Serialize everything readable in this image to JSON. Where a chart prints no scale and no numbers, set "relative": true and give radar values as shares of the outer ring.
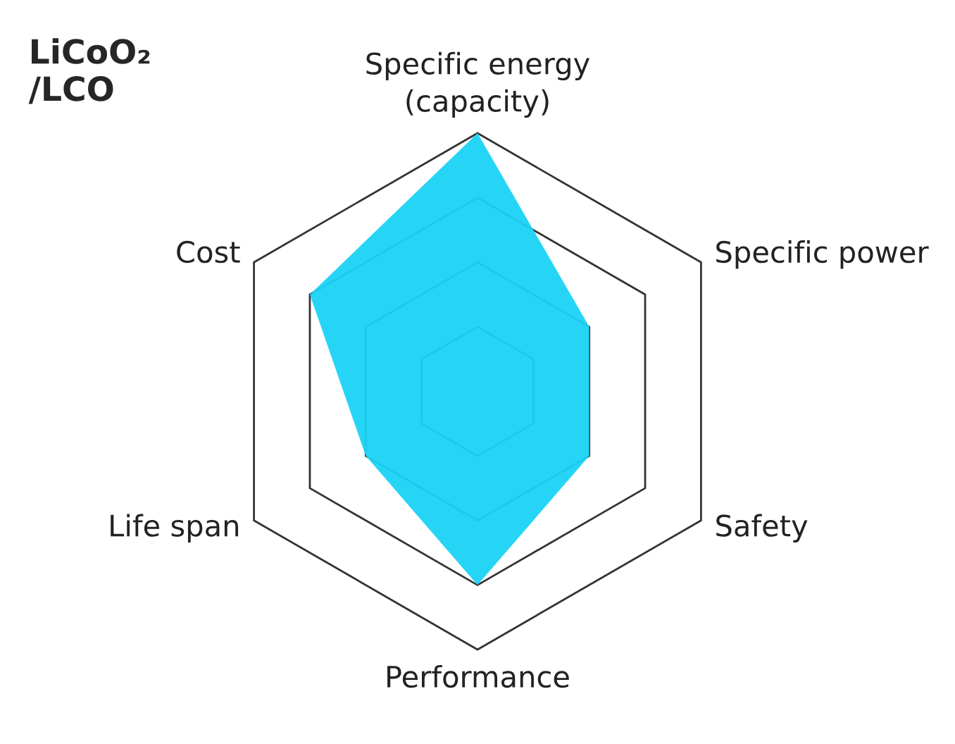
{
  "chart_data": {
    "type": "radar",
    "title": "LiCoO₂\n/LCO",
    "categories": [
      "Specific energy\n(capacity)",
      "Specific power",
      "Safety",
      "Performance",
      "Life span",
      "Cost"
    ],
    "relative": true,
    "grid": true,
    "series": [
      {
        "color": "#1ad3f5",
        "values": [
          1,
          0.5,
          0.5,
          0.75,
          0.5,
          0.75
        ]
      }
    ]
  }
}
